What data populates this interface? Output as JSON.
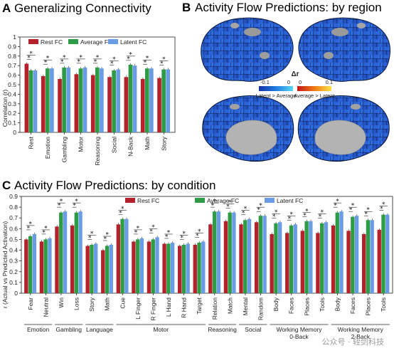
{
  "colors": {
    "rest": "#b5212b",
    "average": "#2e9c45",
    "latent": "#6a9ce6"
  },
  "panelA": {
    "letter": "A",
    "title": "Generalizing Connectivity",
    "legend": [
      "Rest FC",
      "Average FC",
      "Latent FC"
    ],
    "chart_data": {
      "type": "bar",
      "ylabel": "Correlation (r)",
      "ylim": [
        0,
        1
      ],
      "yticks": [
        "0",
        "0.1",
        "0.2",
        "0.3",
        "0.4",
        "0.5",
        "0.6",
        "0.7",
        "0.8",
        "0.9",
        "1"
      ],
      "categories": [
        "Rest",
        "Emotion",
        "Gambling",
        "Motor",
        "Reasoning",
        "Social",
        "N-Back",
        "Math",
        "Story"
      ],
      "series": [
        {
          "name": "Rest FC",
          "values": [
            0.72,
            0.59,
            0.56,
            0.61,
            0.6,
            0.58,
            0.58,
            0.56,
            0.57
          ]
        },
        {
          "name": "Average FC",
          "values": [
            0.65,
            0.67,
            0.68,
            0.67,
            0.68,
            0.65,
            0.71,
            0.67,
            0.66
          ]
        },
        {
          "name": "Latent FC",
          "values": [
            0.65,
            0.67,
            0.68,
            0.68,
            0.67,
            0.66,
            0.7,
            0.67,
            0.66
          ]
        }
      ],
      "significance": "*"
    }
  },
  "panelB": {
    "letter": "B",
    "title": "Activity Flow Predictions: by region",
    "colorbar": {
      "symbol": "Δr",
      "left_min": "-0.1",
      "left_max": "0",
      "right_min": "0",
      "right_max": "0.1",
      "left_label": "Latent > Average",
      "right_label": "Average > Latent"
    }
  },
  "panelC": {
    "letter": "C",
    "title": "Activity Flow Predictions: by condition",
    "legend": [
      "Rest FC",
      "Average FC",
      "Latent FC"
    ],
    "chart_data": {
      "type": "bar",
      "ylabel": "r (Actual vs Predicted Activation)",
      "ylim": [
        0,
        0.9
      ],
      "yticks": [
        "0",
        "0.1",
        "0.2",
        "0.3",
        "0.4",
        "0.5",
        "0.6",
        "0.7",
        "0.8",
        "0.9"
      ],
      "categories": [
        "Fear",
        "Neutral",
        "Win",
        "Loss",
        "Story",
        "Math",
        "Cue",
        "L Finger",
        "R Finger",
        "L Hand",
        "R Hand",
        "Target",
        "Relation",
        "Match",
        "Mental",
        "Random",
        "Body",
        "Faces",
        "Places",
        "Tools",
        "Body",
        "Faces",
        "Places",
        "Tools"
      ],
      "groups": [
        {
          "label": "Emotion",
          "count": 2
        },
        {
          "label": "Gambling",
          "count": 2
        },
        {
          "label": "Language",
          "count": 2
        },
        {
          "label": "Motor",
          "count": 6
        },
        {
          "label": "Reasoning",
          "count": 2
        },
        {
          "label": "Social",
          "count": 2
        },
        {
          "label": "Working Memory\n0-Back",
          "count": 4
        },
        {
          "label": "Working Memory\n2-Back",
          "count": 4
        }
      ],
      "series": [
        {
          "name": "Rest FC",
          "values": [
            0.5,
            0.48,
            0.62,
            0.63,
            0.44,
            0.4,
            0.64,
            0.48,
            0.48,
            0.46,
            0.44,
            0.45,
            0.64,
            0.67,
            0.64,
            0.66,
            0.55,
            0.56,
            0.58,
            0.56,
            0.63,
            0.58,
            0.55,
            0.59
          ]
        },
        {
          "name": "Average FC",
          "values": [
            0.53,
            0.5,
            0.75,
            0.75,
            0.45,
            0.44,
            0.69,
            0.5,
            0.5,
            0.46,
            0.45,
            0.47,
            0.76,
            0.75,
            0.68,
            0.72,
            0.65,
            0.63,
            0.67,
            0.65,
            0.75,
            0.71,
            0.68,
            0.73
          ]
        },
        {
          "name": "Latent FC",
          "values": [
            0.55,
            0.51,
            0.76,
            0.76,
            0.46,
            0.45,
            0.69,
            0.51,
            0.52,
            0.47,
            0.46,
            0.48,
            0.76,
            0.75,
            0.69,
            0.72,
            0.66,
            0.64,
            0.67,
            0.66,
            0.76,
            0.72,
            0.68,
            0.73
          ]
        }
      ],
      "significance": "*"
    }
  },
  "watermark": "公众号 · 轾剑科技"
}
